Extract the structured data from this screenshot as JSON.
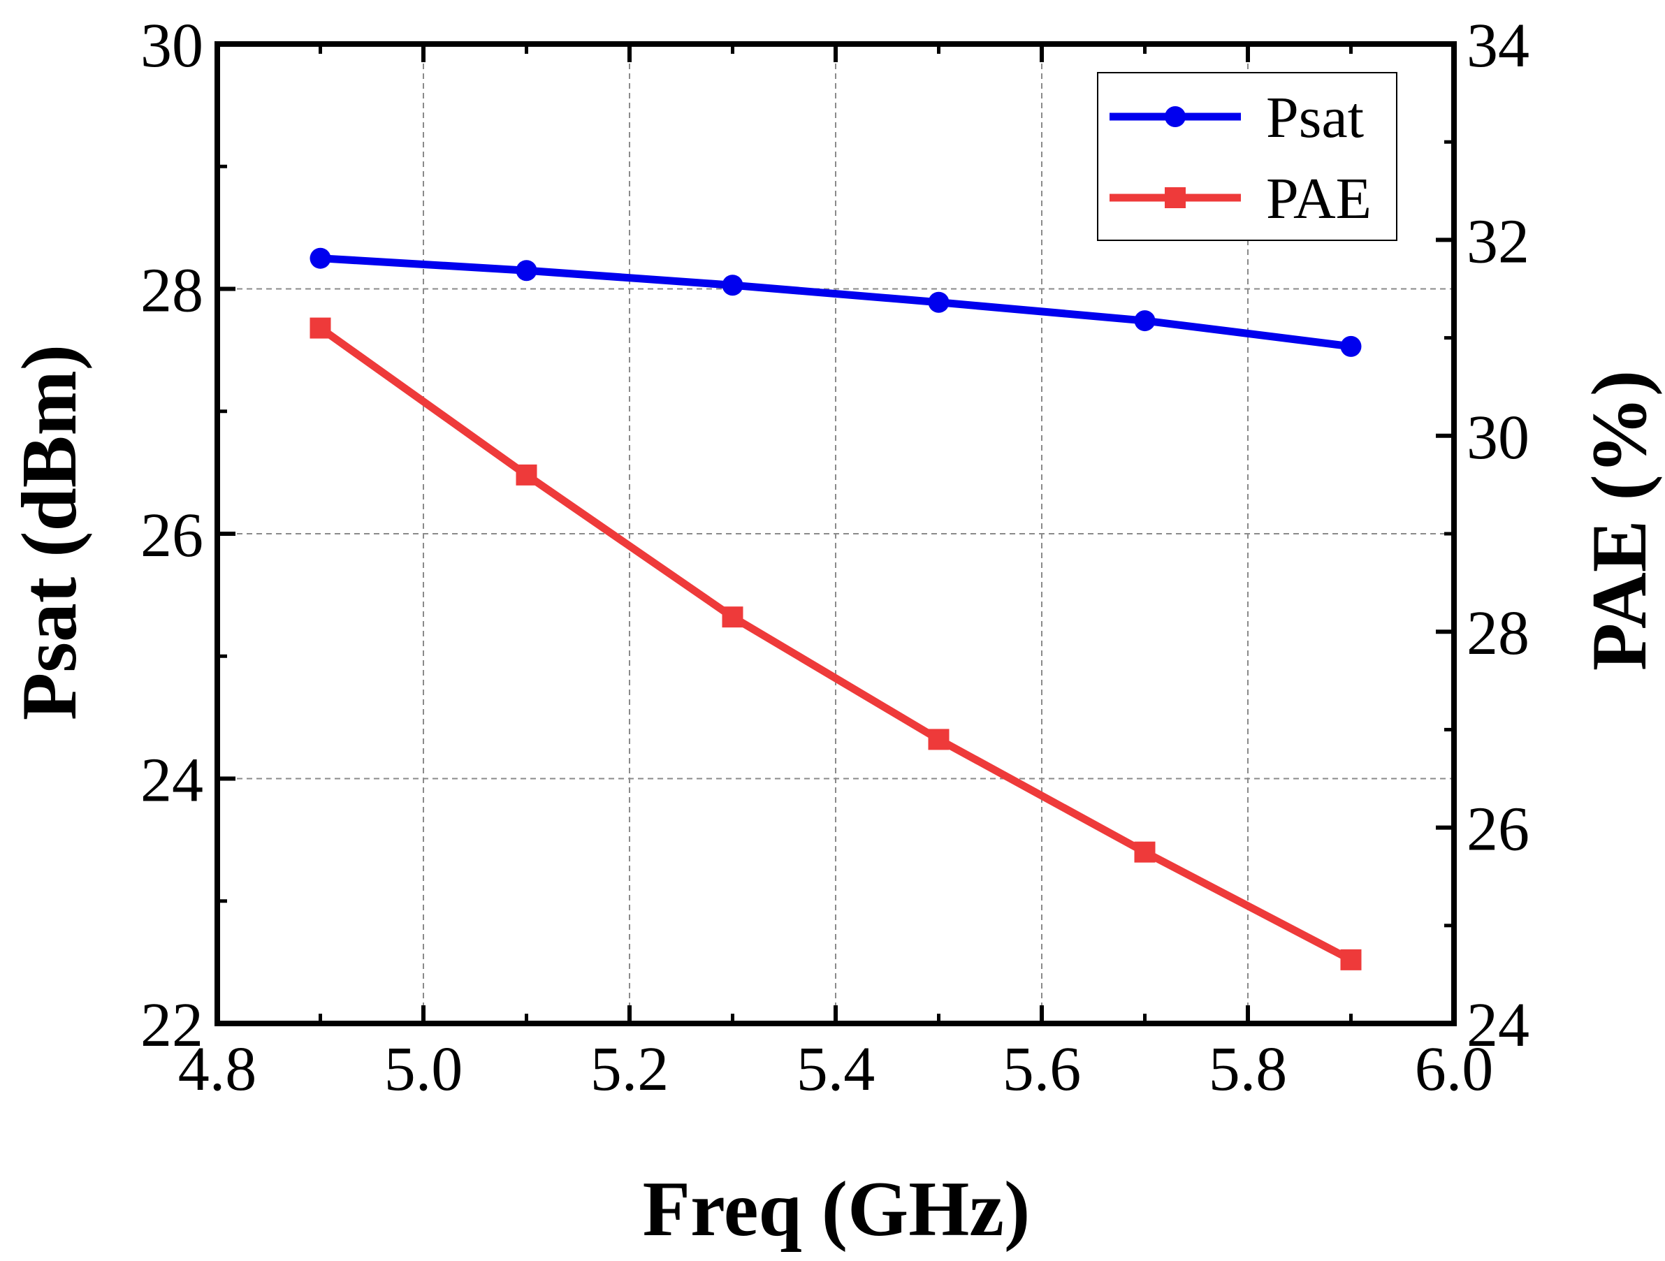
{
  "chart_data": {
    "type": "line",
    "title": "",
    "xlabel": "Freq (GHz)",
    "ylabel": "Psat (dBm)",
    "y2label": "PAE (%)",
    "xlim": [
      4.8,
      6.0
    ],
    "ylim": [
      22,
      30
    ],
    "y2lim": [
      24,
      34
    ],
    "grid": true,
    "legend_position": "top-right",
    "x": [
      4.9,
      5.1,
      5.3,
      5.5,
      5.7,
      5.9
    ],
    "x_ticks": [
      "4.8",
      "5.0",
      "5.2",
      "5.4",
      "5.6",
      "5.8",
      "6.0"
    ],
    "y_ticks": [
      "22",
      "24",
      "26",
      "28",
      "30"
    ],
    "y2_ticks": [
      "24",
      "26",
      "28",
      "30",
      "32",
      "34"
    ],
    "series": [
      {
        "name": "Psat",
        "axis": "left",
        "color": "#0000ee",
        "marker": "circle",
        "values": [
          28.25,
          28.15,
          28.03,
          27.89,
          27.74,
          27.53
        ]
      },
      {
        "name": "PAE",
        "axis": "right",
        "color": "#ee3a3a",
        "marker": "square",
        "values": [
          31.1,
          29.6,
          28.15,
          26.9,
          25.75,
          24.65
        ]
      }
    ]
  }
}
